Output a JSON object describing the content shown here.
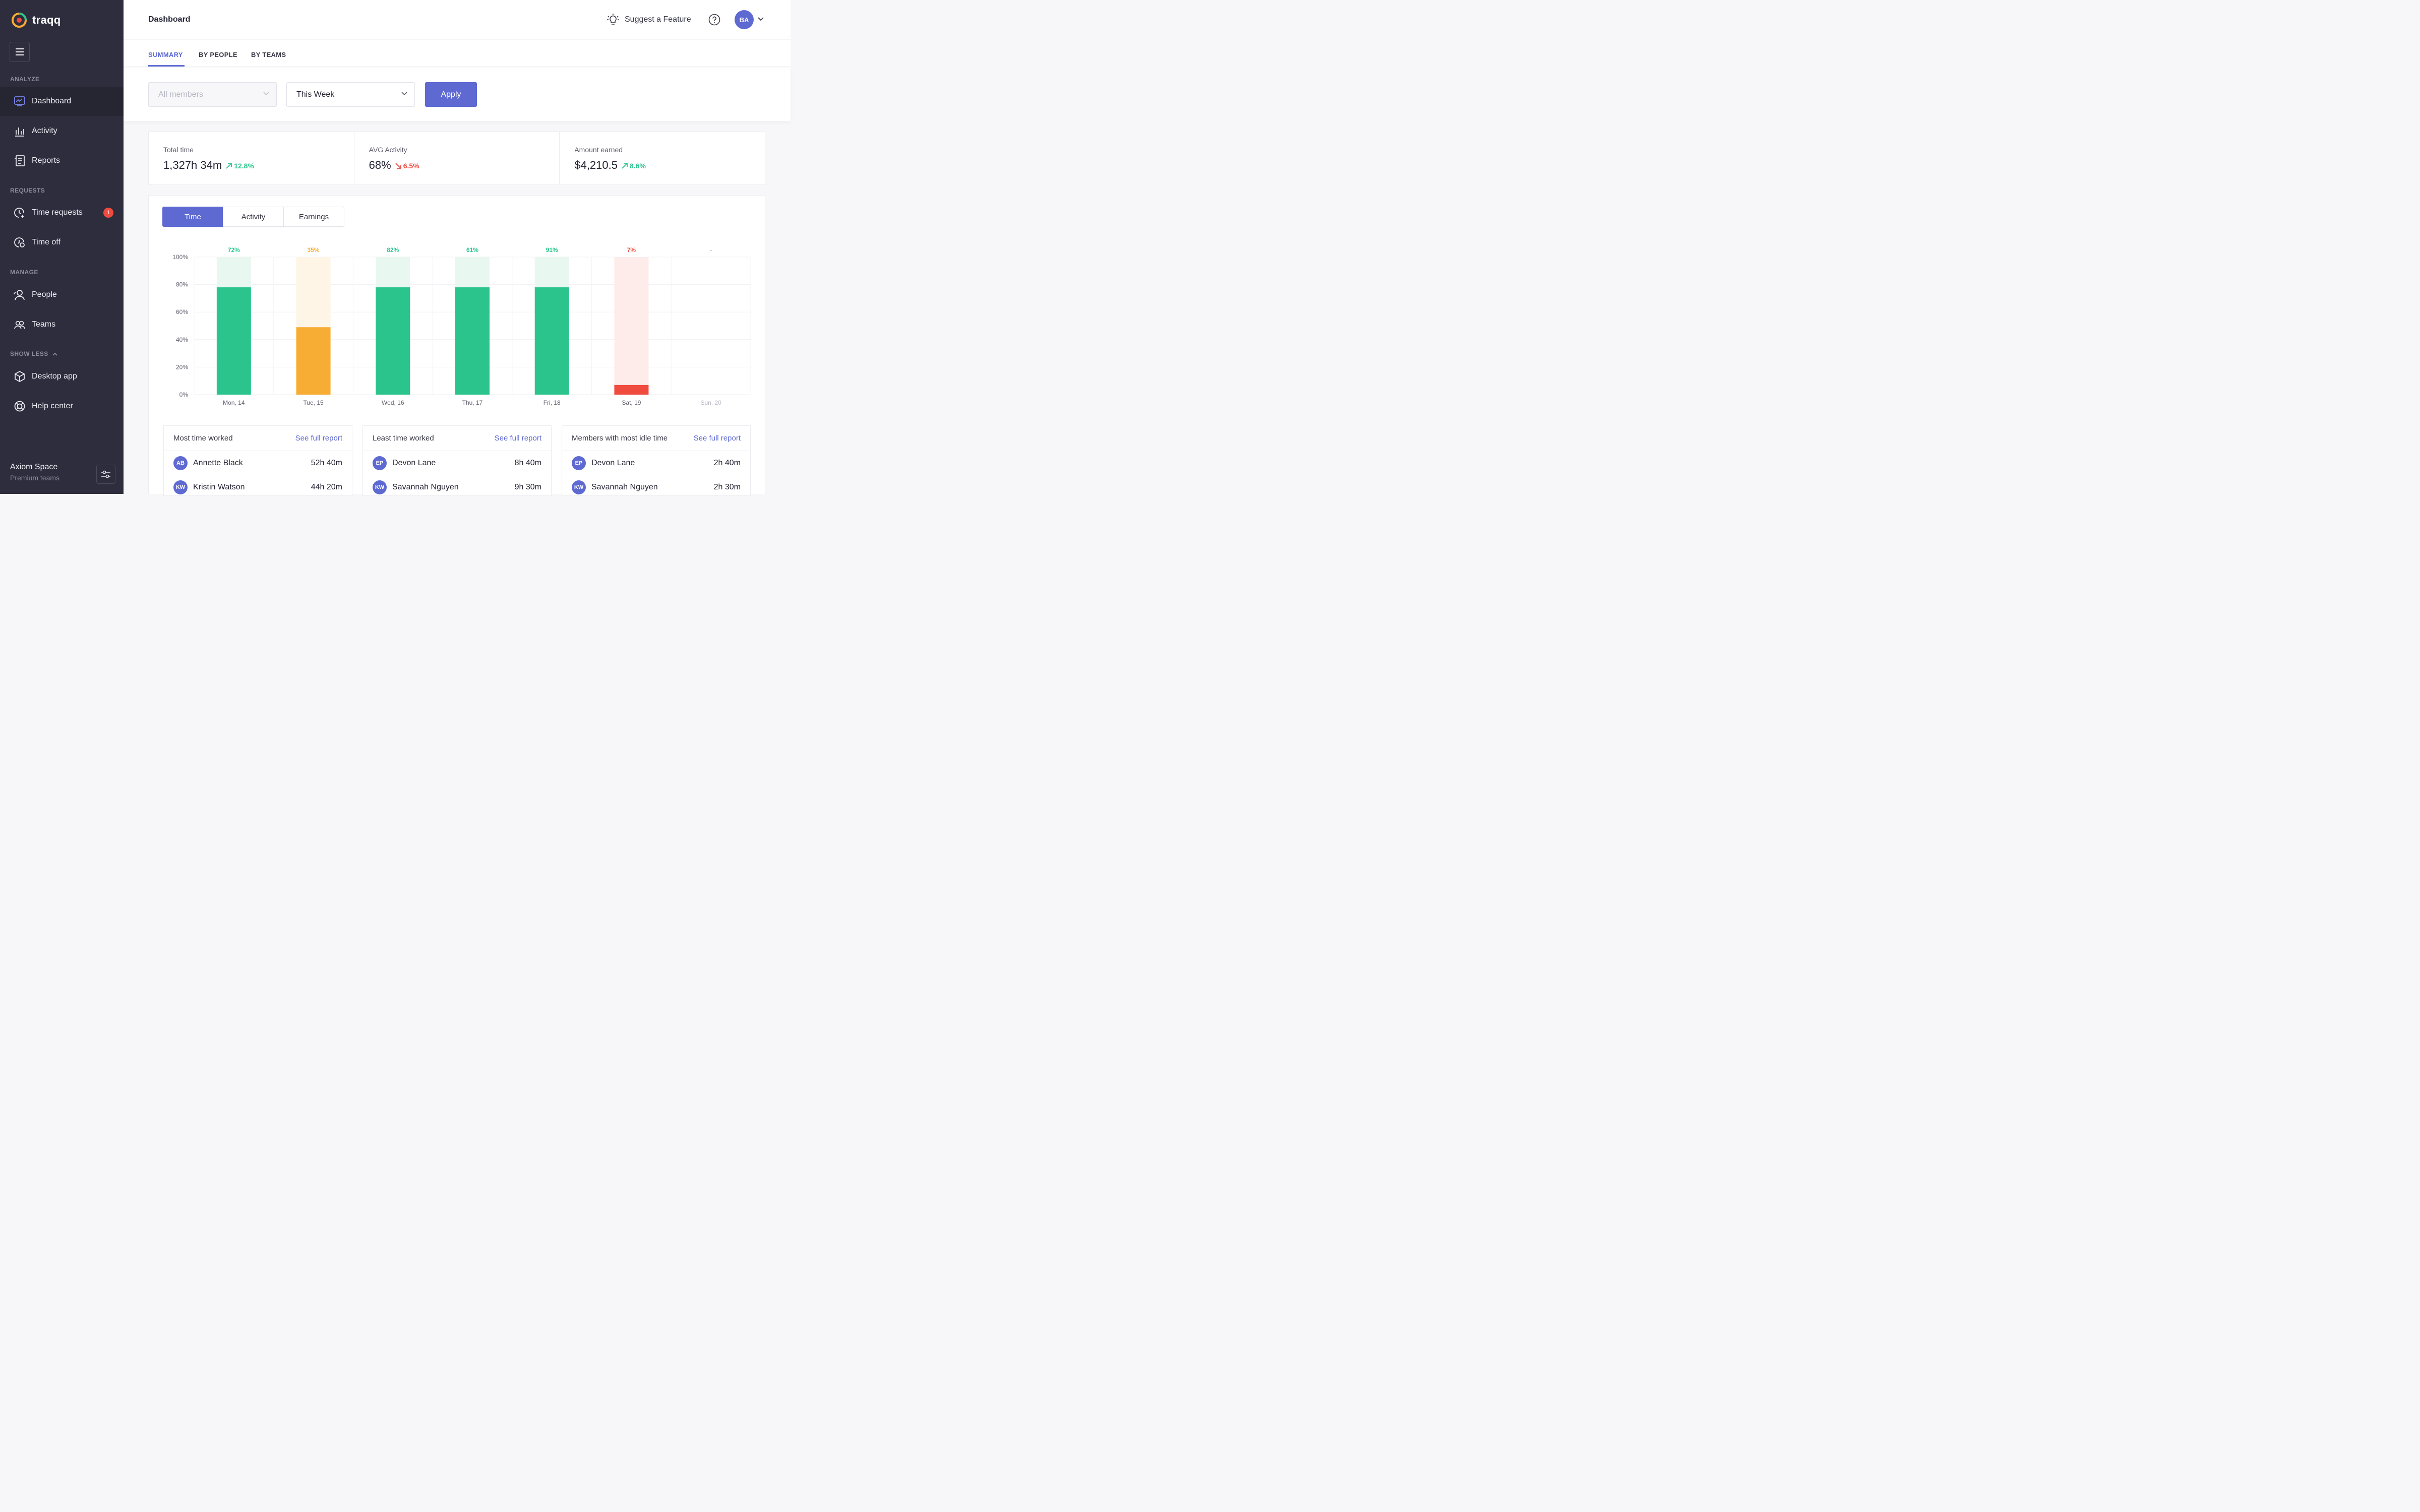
{
  "app": {
    "name": "traqq"
  },
  "sidebar": {
    "sections": {
      "analyze": "ANALYZE",
      "requests": "REQUESTS",
      "manage": "MANAGE",
      "show_less": "SHOW LESS"
    },
    "items": {
      "dashboard": "Dashboard",
      "activity": "Activity",
      "reports": "Reports",
      "time_requests": "Time requests",
      "time_off": "Time off",
      "people": "People",
      "teams": "Teams",
      "desktop_app": "Desktop app",
      "help_center": "Help center"
    },
    "time_requests_badge": "1",
    "workspace": {
      "name": "Axiom Space",
      "plan": "Premium teams"
    }
  },
  "header": {
    "title": "Dashboard",
    "suggest": "Suggest a Feature",
    "avatar_initials": "BA"
  },
  "tabs": {
    "summary": "SUMMARY",
    "by_people": "BY PEOPLE",
    "by_teams": "BY TEAMS"
  },
  "filters": {
    "members_placeholder": "All members",
    "period": "This Week",
    "apply": "Apply"
  },
  "stats": {
    "total_time": {
      "label": "Total time",
      "value": "1,327h 34m",
      "delta": "12.8%",
      "direction": "up"
    },
    "avg_activity": {
      "label": "AVG Activity",
      "value": "68%",
      "delta": "6.5%",
      "direction": "down"
    },
    "amount_earned": {
      "label": "Amount earned",
      "value": "$4,210.5",
      "delta": "8.6%",
      "direction": "up"
    }
  },
  "chart_toggle": {
    "time": "Time",
    "activity": "Activity",
    "earnings": "Earnings"
  },
  "chart_data": {
    "type": "bar",
    "categories": [
      "Mon, 14",
      "Tue, 15",
      "Wed, 16",
      "Thu, 17",
      "Fri, 18",
      "Sat, 19",
      "Sun, 20"
    ],
    "values": [
      78,
      49,
      78,
      78,
      78,
      7,
      null
    ],
    "activity_labels": [
      "72%",
      "35%",
      "82%",
      "61%",
      "91%",
      "7%",
      "-"
    ],
    "yticks": [
      "100%",
      "80%",
      "60%",
      "40%",
      "20%",
      "0%"
    ],
    "ylim": [
      0,
      100
    ],
    "colors": {
      "high": "#2cc48d",
      "mid": "#f7ad33",
      "low": "#ef4b3f"
    },
    "bar_levels": [
      "high",
      "mid",
      "high",
      "high",
      "high",
      "low",
      null
    ]
  },
  "lists": {
    "most_time": {
      "title": "Most time worked",
      "link": "See full report",
      "rows": [
        {
          "initials": "AB",
          "name": "Annette Black",
          "value": "52h 40m"
        },
        {
          "initials": "KW",
          "name": "Kristin Watson",
          "value": "44h 20m"
        }
      ]
    },
    "least_time": {
      "title": "Least time worked",
      "link": "See full report",
      "rows": [
        {
          "initials": "EP",
          "name": "Devon Lane",
          "value": "8h 40m"
        },
        {
          "initials": "KW",
          "name": "Savannah Nguyen",
          "value": "9h 30m"
        }
      ]
    },
    "idle_time": {
      "title": "Members with most idle time",
      "link": "See full report",
      "rows": [
        {
          "initials": "EP",
          "name": "Devon Lane",
          "value": "2h 40m"
        },
        {
          "initials": "KW",
          "name": "Savannah Nguyen",
          "value": "2h 30m"
        }
      ]
    }
  }
}
